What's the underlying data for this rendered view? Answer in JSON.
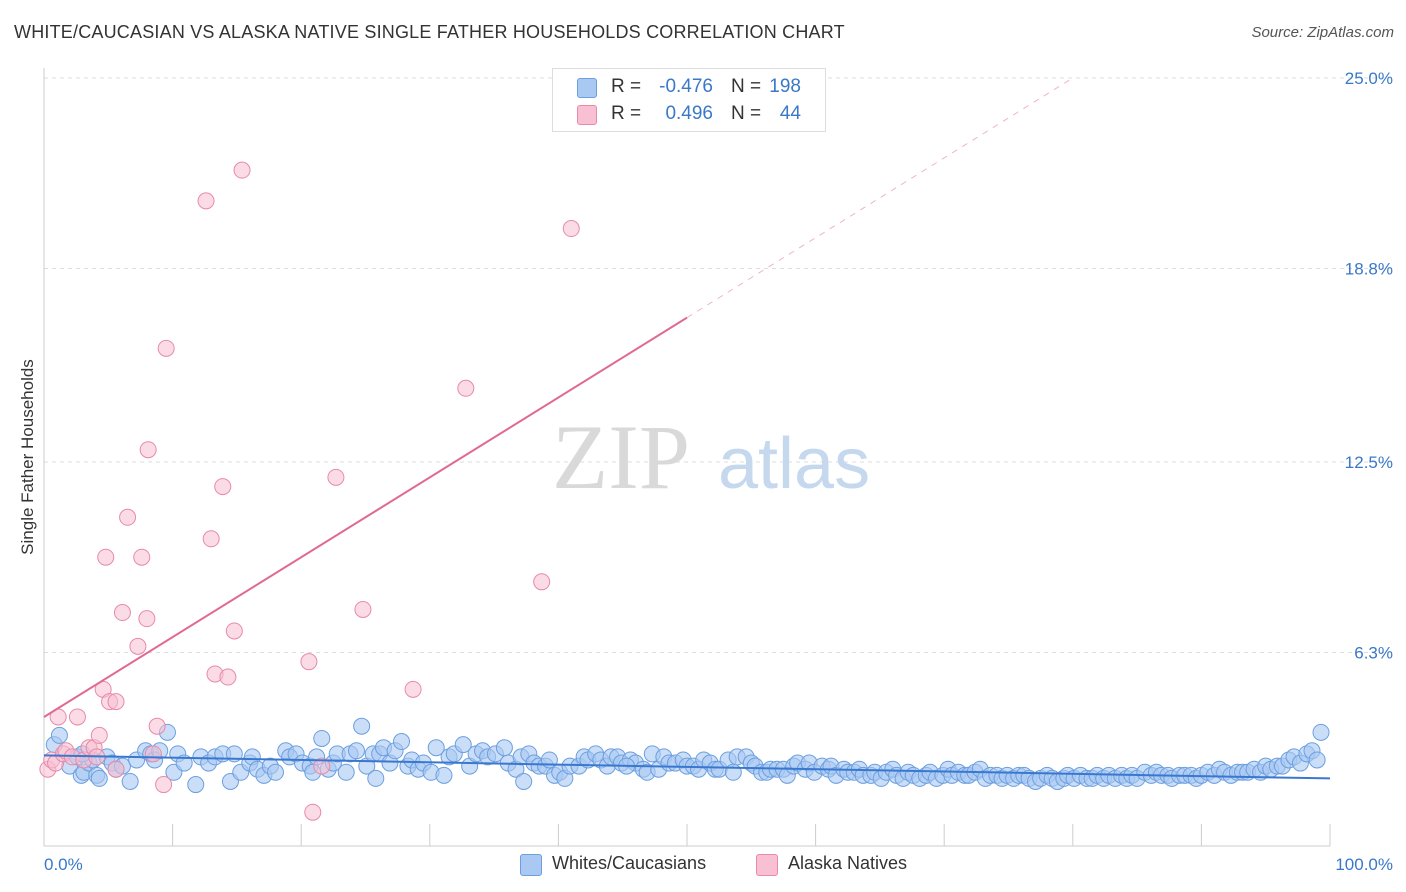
{
  "title": "WHITE/CAUCASIAN VS ALASKA NATIVE SINGLE FATHER HOUSEHOLDS CORRELATION CHART",
  "source": "Source: ZipAtlas.com",
  "watermark": {
    "zip": "ZIP",
    "atlas": "atlas"
  },
  "legend": {
    "white": {
      "r_label": "R =",
      "r_value": "-0.476",
      "n_label": "N =",
      "n_value": "198"
    },
    "alaska": {
      "r_label": "R =",
      "r_value": "0.496",
      "n_label": "N =",
      "n_value": "44"
    }
  },
  "colors": {
    "white_fill": "#a9c8f2",
    "white_stroke": "#6b9fe0",
    "white_line": "#3a78d0",
    "alaska_fill": "#f8c0d2",
    "alaska_stroke": "#e88aa8",
    "alaska_line": "#e06a90",
    "tick_text": "#3a78c8",
    "grid": "#dddddd"
  },
  "chart_data": {
    "type": "scatter",
    "title": "WHITE/CAUCASIAN VS ALASKA NATIVE SINGLE FATHER HOUSEHOLDS CORRELATION CHART",
    "xlabel": "",
    "ylabel": "Single Father Households",
    "xlim": [
      0,
      100
    ],
    "ylim": [
      0,
      25.0
    ],
    "x_tick_labels": [
      "0.0%",
      "100.0%"
    ],
    "y_ticks": [
      6.3,
      12.5,
      18.8,
      25.0
    ],
    "y_tick_labels": [
      "6.3%",
      "12.5%",
      "18.8%",
      "25.0%"
    ],
    "grid": true,
    "legend_position": "bottom",
    "series": [
      {
        "name": "Whites/Caucasians",
        "r": -0.476,
        "n": 198,
        "trend": {
          "x": [
            0,
            100
          ],
          "y": [
            2.95,
            2.2
          ]
        },
        "points": [
          [
            0.8,
            3.3
          ],
          [
            1.2,
            3.6
          ],
          [
            2.0,
            2.6
          ],
          [
            2.6,
            2.9
          ],
          [
            2.9,
            2.3
          ],
          [
            3.1,
            2.4
          ],
          [
            3.5,
            2.7
          ],
          [
            3.8,
            2.8
          ],
          [
            4.1,
            2.3
          ],
          [
            4.3,
            2.2
          ],
          [
            4.9,
            2.9
          ],
          [
            5.3,
            2.7
          ],
          [
            5.6,
            2.5
          ],
          [
            6.1,
            2.6
          ],
          [
            6.7,
            2.1
          ],
          [
            7.2,
            2.8
          ],
          [
            7.9,
            3.1
          ],
          [
            8.3,
            3.0
          ],
          [
            8.6,
            2.8
          ],
          [
            9.0,
            3.1
          ],
          [
            9.6,
            3.7
          ],
          [
            10.1,
            2.4
          ],
          [
            10.4,
            3.0
          ],
          [
            10.9,
            2.7
          ],
          [
            11.8,
            2.0
          ],
          [
            12.2,
            2.9
          ],
          [
            12.8,
            2.7
          ],
          [
            13.3,
            2.9
          ],
          [
            13.9,
            3.0
          ],
          [
            14.5,
            2.1
          ],
          [
            14.8,
            3.0
          ],
          [
            15.3,
            2.4
          ],
          [
            16.0,
            2.7
          ],
          [
            16.2,
            2.9
          ],
          [
            16.6,
            2.5
          ],
          [
            17.1,
            2.3
          ],
          [
            17.6,
            2.6
          ],
          [
            18.0,
            2.4
          ],
          [
            18.8,
            3.1
          ],
          [
            19.1,
            2.9
          ],
          [
            19.6,
            3.0
          ],
          [
            20.1,
            2.7
          ],
          [
            20.7,
            2.6
          ],
          [
            20.9,
            2.4
          ],
          [
            21.2,
            2.9
          ],
          [
            21.6,
            3.5
          ],
          [
            22.1,
            2.5
          ],
          [
            22.5,
            2.7
          ],
          [
            22.8,
            3.0
          ],
          [
            23.5,
            2.4
          ],
          [
            23.8,
            3.0
          ],
          [
            24.3,
            3.1
          ],
          [
            24.7,
            3.9
          ],
          [
            25.1,
            2.6
          ],
          [
            25.6,
            3.0
          ],
          [
            26.1,
            3.0
          ],
          [
            26.4,
            3.2
          ],
          [
            26.9,
            2.7
          ],
          [
            27.3,
            3.1
          ],
          [
            27.8,
            3.4
          ],
          [
            28.3,
            2.6
          ],
          [
            28.6,
            2.8
          ],
          [
            29.1,
            2.5
          ],
          [
            29.5,
            2.7
          ],
          [
            30.1,
            2.4
          ],
          [
            30.5,
            3.2
          ],
          [
            31.1,
            2.3
          ],
          [
            31.5,
            2.9
          ],
          [
            31.9,
            3.0
          ],
          [
            32.6,
            3.3
          ],
          [
            33.1,
            2.6
          ],
          [
            33.6,
            3.0
          ],
          [
            34.1,
            3.1
          ],
          [
            34.5,
            2.9
          ],
          [
            35.1,
            3.0
          ],
          [
            35.8,
            3.2
          ],
          [
            36.1,
            2.7
          ],
          [
            36.7,
            2.5
          ],
          [
            37.1,
            2.9
          ],
          [
            37.7,
            3.0
          ],
          [
            38.1,
            2.7
          ],
          [
            38.5,
            2.6
          ],
          [
            39.0,
            2.6
          ],
          [
            39.3,
            2.8
          ],
          [
            39.7,
            2.3
          ],
          [
            40.1,
            2.4
          ],
          [
            40.5,
            2.2
          ],
          [
            40.9,
            2.6
          ],
          [
            41.6,
            2.6
          ],
          [
            42.0,
            2.9
          ],
          [
            42.3,
            2.8
          ],
          [
            42.9,
            3.0
          ],
          [
            43.3,
            2.8
          ],
          [
            43.8,
            2.6
          ],
          [
            44.1,
            2.9
          ],
          [
            44.6,
            2.9
          ],
          [
            44.9,
            2.7
          ],
          [
            45.6,
            2.8
          ],
          [
            46.0,
            2.7
          ],
          [
            46.6,
            2.5
          ],
          [
            46.9,
            2.4
          ],
          [
            47.3,
            3.0
          ],
          [
            47.8,
            2.5
          ],
          [
            48.2,
            2.9
          ],
          [
            48.6,
            2.7
          ],
          [
            49.1,
            2.7
          ],
          [
            49.7,
            2.8
          ],
          [
            50.0,
            2.6
          ],
          [
            50.5,
            2.6
          ],
          [
            50.9,
            2.5
          ],
          [
            51.3,
            2.8
          ],
          [
            51.8,
            2.7
          ],
          [
            52.2,
            2.5
          ],
          [
            52.5,
            2.5
          ],
          [
            53.2,
            2.8
          ],
          [
            53.6,
            2.4
          ],
          [
            53.9,
            2.9
          ],
          [
            54.6,
            2.9
          ],
          [
            55.0,
            2.7
          ],
          [
            55.3,
            2.6
          ],
          [
            55.8,
            2.4
          ],
          [
            56.2,
            2.4
          ],
          [
            56.5,
            2.5
          ],
          [
            57.0,
            2.5
          ],
          [
            57.5,
            2.5
          ],
          [
            57.8,
            2.3
          ],
          [
            58.3,
            2.6
          ],
          [
            58.6,
            2.7
          ],
          [
            59.2,
            2.5
          ],
          [
            59.5,
            2.7
          ],
          [
            59.9,
            2.4
          ],
          [
            60.5,
            2.6
          ],
          [
            61.0,
            2.5
          ],
          [
            61.2,
            2.6
          ],
          [
            61.6,
            2.3
          ],
          [
            62.2,
            2.5
          ],
          [
            62.5,
            2.4
          ],
          [
            63.0,
            2.4
          ],
          [
            63.4,
            2.5
          ],
          [
            63.7,
            2.3
          ],
          [
            64.3,
            2.3
          ],
          [
            64.6,
            2.4
          ],
          [
            65.1,
            2.2
          ],
          [
            65.5,
            2.4
          ],
          [
            66.0,
            2.5
          ],
          [
            66.3,
            2.3
          ],
          [
            66.8,
            2.2
          ],
          [
            67.2,
            2.4
          ],
          [
            67.6,
            2.3
          ],
          [
            68.1,
            2.2
          ],
          [
            68.6,
            2.3
          ],
          [
            68.9,
            2.4
          ],
          [
            69.4,
            2.2
          ],
          [
            69.9,
            2.3
          ],
          [
            70.3,
            2.5
          ],
          [
            70.6,
            2.3
          ],
          [
            71.1,
            2.4
          ],
          [
            71.6,
            2.3
          ],
          [
            71.9,
            2.3
          ],
          [
            72.4,
            2.4
          ],
          [
            72.8,
            2.5
          ],
          [
            73.2,
            2.2
          ],
          [
            73.6,
            2.3
          ],
          [
            74.1,
            2.3
          ],
          [
            74.5,
            2.2
          ],
          [
            74.9,
            2.3
          ],
          [
            75.4,
            2.2
          ],
          [
            75.8,
            2.3
          ],
          [
            76.2,
            2.3
          ],
          [
            76.6,
            2.2
          ],
          [
            77.1,
            2.1
          ],
          [
            77.5,
            2.2
          ],
          [
            78.0,
            2.3
          ],
          [
            78.4,
            2.2
          ],
          [
            78.8,
            2.1
          ],
          [
            79.3,
            2.2
          ],
          [
            79.6,
            2.3
          ],
          [
            80.1,
            2.2
          ],
          [
            80.6,
            2.3
          ],
          [
            81.1,
            2.2
          ],
          [
            81.5,
            2.2
          ],
          [
            81.9,
            2.3
          ],
          [
            82.4,
            2.2
          ],
          [
            82.8,
            2.3
          ],
          [
            83.3,
            2.2
          ],
          [
            83.8,
            2.3
          ],
          [
            84.2,
            2.2
          ],
          [
            84.6,
            2.3
          ],
          [
            85.0,
            2.2
          ],
          [
            85.6,
            2.4
          ],
          [
            86.1,
            2.3
          ],
          [
            86.5,
            2.4
          ],
          [
            86.9,
            2.3
          ],
          [
            87.4,
            2.3
          ],
          [
            87.7,
            2.2
          ],
          [
            88.3,
            2.3
          ],
          [
            88.7,
            2.3
          ],
          [
            89.2,
            2.3
          ],
          [
            89.6,
            2.2
          ],
          [
            90.0,
            2.3
          ],
          [
            90.5,
            2.4
          ],
          [
            91.0,
            2.3
          ],
          [
            91.4,
            2.5
          ],
          [
            91.8,
            2.4
          ],
          [
            92.3,
            2.3
          ],
          [
            92.8,
            2.4
          ],
          [
            93.2,
            2.4
          ],
          [
            93.6,
            2.4
          ],
          [
            94.1,
            2.5
          ],
          [
            94.6,
            2.4
          ],
          [
            95.0,
            2.6
          ],
          [
            95.4,
            2.5
          ],
          [
            95.9,
            2.6
          ],
          [
            96.3,
            2.6
          ],
          [
            96.8,
            2.8
          ],
          [
            97.2,
            2.9
          ],
          [
            97.7,
            2.7
          ],
          [
            98.2,
            3.0
          ],
          [
            98.6,
            3.1
          ],
          [
            99.0,
            2.8
          ],
          [
            99.3,
            3.7
          ],
          [
            25.8,
            2.2
          ],
          [
            37.3,
            2.1
          ],
          [
            45.3,
            2.6
          ],
          [
            3.0,
            3.0
          ]
        ]
      },
      {
        "name": "Alaska Natives",
        "r": 0.496,
        "n": 44,
        "trend": {
          "x": [
            0,
            50
          ],
          "y": [
            4.2,
            17.2
          ]
        },
        "trend_dashed": {
          "x": [
            50,
            80
          ],
          "y": [
            17.2,
            25.0
          ]
        },
        "points": [
          [
            0.3,
            2.5
          ],
          [
            0.6,
            2.8
          ],
          [
            0.9,
            2.7
          ],
          [
            1.1,
            4.2
          ],
          [
            1.5,
            3.0
          ],
          [
            1.7,
            3.1
          ],
          [
            2.2,
            2.9
          ],
          [
            2.6,
            4.2
          ],
          [
            3.1,
            2.8
          ],
          [
            3.5,
            3.2
          ],
          [
            3.9,
            3.2
          ],
          [
            4.1,
            2.9
          ],
          [
            4.3,
            3.6
          ],
          [
            4.6,
            5.1
          ],
          [
            4.8,
            9.4
          ],
          [
            5.1,
            4.7
          ],
          [
            5.6,
            4.7
          ],
          [
            5.6,
            2.5
          ],
          [
            6.1,
            7.6
          ],
          [
            6.5,
            10.7
          ],
          [
            7.3,
            6.5
          ],
          [
            7.6,
            9.4
          ],
          [
            8.0,
            7.4
          ],
          [
            8.1,
            12.9
          ],
          [
            8.5,
            3.0
          ],
          [
            8.8,
            3.9
          ],
          [
            9.3,
            2.0
          ],
          [
            9.5,
            16.2
          ],
          [
            12.6,
            21.0
          ],
          [
            13.0,
            10.0
          ],
          [
            13.3,
            5.6
          ],
          [
            13.9,
            11.7
          ],
          [
            14.3,
            5.5
          ],
          [
            14.8,
            7.0
          ],
          [
            15.4,
            22.0
          ],
          [
            20.6,
            6.0
          ],
          [
            20.9,
            1.1
          ],
          [
            21.6,
            2.6
          ],
          [
            22.7,
            12.0
          ],
          [
            24.8,
            7.7
          ],
          [
            28.7,
            5.1
          ],
          [
            32.8,
            14.9
          ],
          [
            38.7,
            8.6
          ],
          [
            41.0,
            20.1
          ]
        ]
      }
    ]
  },
  "legend_bottom": {
    "white_label": "Whites/Caucasians",
    "alaska_label": "Alaska Natives"
  }
}
